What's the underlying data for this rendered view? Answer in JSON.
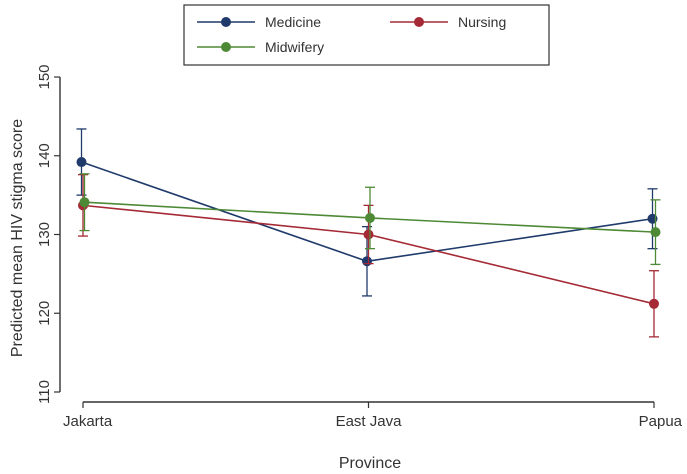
{
  "chart_data": {
    "type": "line",
    "xlabel": "Province",
    "ylabel": "Predicted mean HIV stigma score",
    "categories": [
      "Jakarta",
      "East Java",
      "Papua"
    ],
    "ylim": [
      110,
      150
    ],
    "yticks": [
      110,
      120,
      130,
      140,
      150
    ],
    "error_bars": true,
    "legend_placement": "top-center",
    "series": [
      {
        "name": "Medicine",
        "color": "#1f3a6b",
        "values": [
          139.2,
          126.6,
          132.0
        ],
        "lower": [
          135.0,
          122.2,
          128.2
        ],
        "upper": [
          143.4,
          131.0,
          135.8
        ]
      },
      {
        "name": "Nursing",
        "color": "#a52a35",
        "values": [
          133.7,
          130.0,
          121.2
        ],
        "lower": [
          129.8,
          126.3,
          117.0
        ],
        "upper": [
          137.6,
          133.7,
          125.4
        ]
      },
      {
        "name": "Midwifery",
        "color": "#4e8a36",
        "values": [
          134.1,
          132.1,
          130.3
        ],
        "lower": [
          130.5,
          128.2,
          126.2
        ],
        "upper": [
          137.7,
          136.0,
          134.4
        ]
      }
    ]
  }
}
